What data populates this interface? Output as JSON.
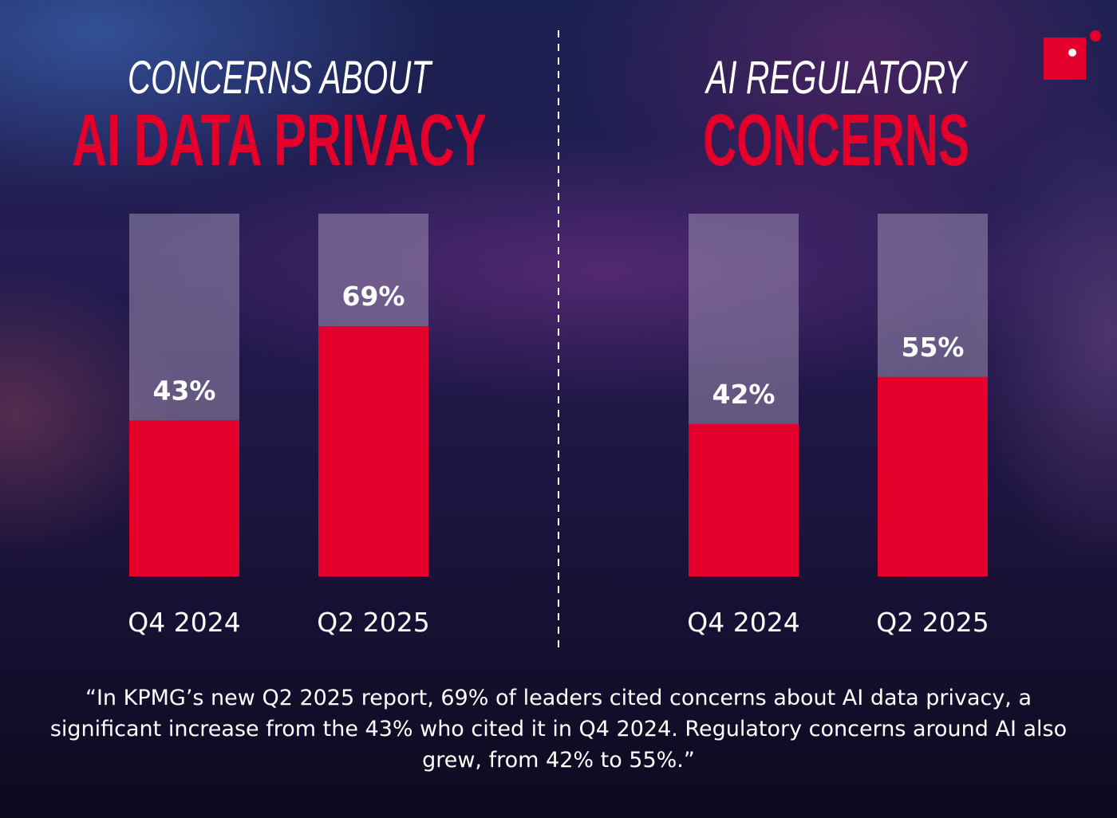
{
  "colors": {
    "accent": "#e4002b",
    "bar_track": "#9a8eb0",
    "text": "#ffffff"
  },
  "logo": {
    "icon": "brand-square-dot-icon"
  },
  "chart_data": [
    {
      "type": "bar",
      "title_line1": "CONCERNS ABOUT",
      "title_line2": "AI DATA PRIVACY",
      "categories": [
        "Q4 2024",
        "Q2 2025"
      ],
      "values": [
        43,
        69
      ],
      "value_labels": [
        "43%",
        "69%"
      ],
      "ylim": [
        0,
        100
      ],
      "unit": "%"
    },
    {
      "type": "bar",
      "title_line1": "AI REGULATORY",
      "title_line2": "CONCERNS",
      "categories": [
        "Q4 2024",
        "Q2 2025"
      ],
      "values": [
        42,
        55
      ],
      "value_labels": [
        "42%",
        "55%"
      ],
      "ylim": [
        0,
        100
      ],
      "unit": "%"
    }
  ],
  "quote": {
    "text": "“In KPMG’s new Q2 2025 report, 69% of leaders cited concerns about AI data privacy, a significant increase from the 43% who cited it in Q4 2024. Regulatory concerns around AI also grew, from 42% to 55%.”"
  }
}
